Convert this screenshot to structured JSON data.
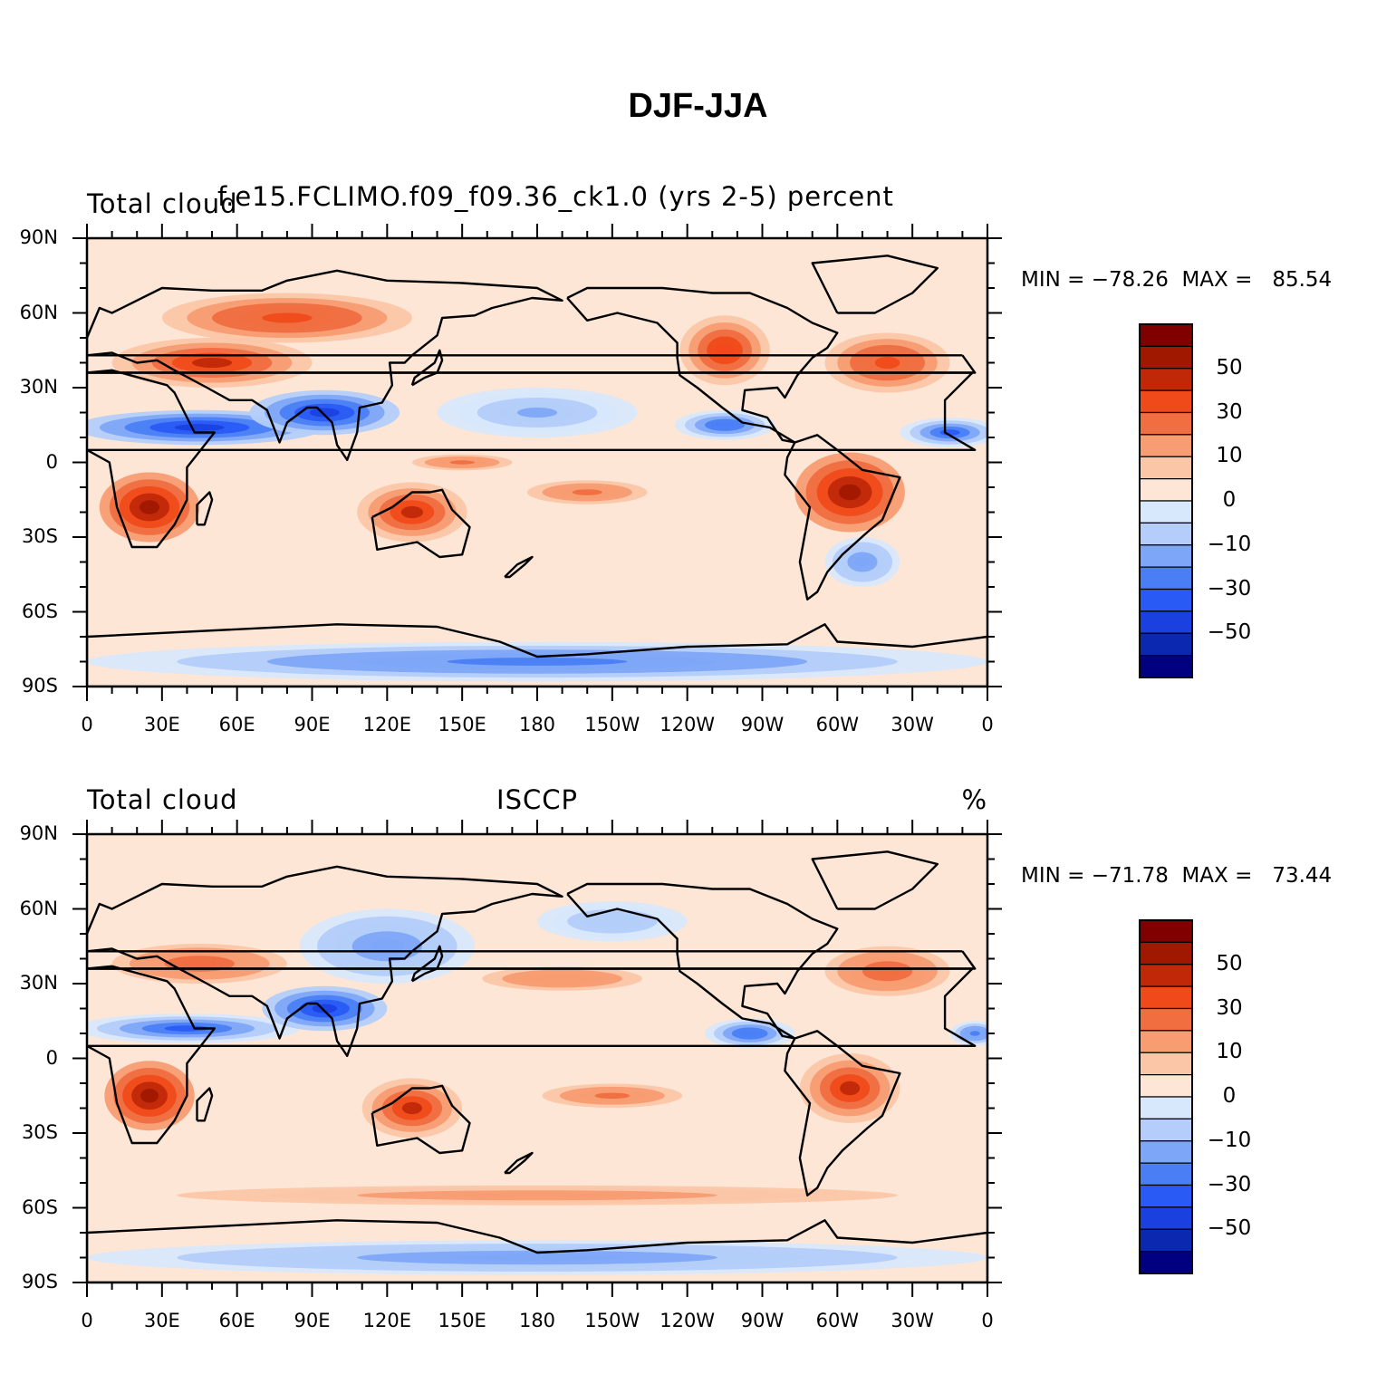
{
  "title": "DJF-JJA",
  "palette": {
    "levels_colors": [
      "#000080",
      "#0a28b0",
      "#1a40e0",
      "#2a5af5",
      "#4a7ef5",
      "#7ea6f8",
      "#b4cdfa",
      "#d8e8fc",
      "#fde6d6",
      "#fbc6a8",
      "#f89c72",
      "#f06e40",
      "#f04a1a",
      "#c02808",
      "#a01800",
      "#800000"
    ],
    "coast": "#000000"
  },
  "chart_data": [
    {
      "type": "heatmap",
      "panel": "top",
      "left_title": "Total cloud",
      "center_title": "f.e15.FCLIMO.f09_f09.36_ck1.0 (yrs 2-5) percent",
      "right_title": "",
      "variable": "Total cloud",
      "units": "percent",
      "min_label": "MIN = −78.26",
      "max_label": "MAX =   85.54",
      "min": -78.26,
      "max": 85.54,
      "xlim": [
        0,
        360
      ],
      "ylim": [
        -90,
        90
      ],
      "x_ticks": [
        "0",
        "30E",
        "60E",
        "90E",
        "120E",
        "150E",
        "180",
        "150W",
        "120W",
        "90W",
        "60W",
        "30W",
        "0"
      ],
      "y_ticks": [
        "90N",
        "60N",
        "30N",
        "0",
        "30S",
        "60S",
        "90S"
      ],
      "colorbar_levels": [
        -70,
        -60,
        -50,
        -40,
        -30,
        -20,
        -10,
        0,
        5,
        10,
        20,
        30,
        40,
        50,
        60,
        70
      ],
      "colorbar_labels": [
        "50",
        "30",
        "10",
        "0",
        "−10",
        "−30",
        "−50"
      ],
      "features": [
        {
          "lon": 25,
          "lat": -18,
          "v": 55,
          "rx": 20,
          "ry": 14
        },
        {
          "lon": 130,
          "lat": -20,
          "v": 45,
          "rx": 22,
          "ry": 12
        },
        {
          "lon": 305,
          "lat": -12,
          "v": 55,
          "rx": 22,
          "ry": 16
        },
        {
          "lon": 50,
          "lat": 40,
          "v": 48,
          "rx": 40,
          "ry": 10
        },
        {
          "lon": 80,
          "lat": 58,
          "v": 35,
          "rx": 50,
          "ry": 10
        },
        {
          "lon": 255,
          "lat": 45,
          "v": 40,
          "rx": 18,
          "ry": 14
        },
        {
          "lon": 320,
          "lat": 40,
          "v": 35,
          "rx": 25,
          "ry": 12
        },
        {
          "lon": 45,
          "lat": 14,
          "v": -55,
          "rx": 50,
          "ry": 7
        },
        {
          "lon": 95,
          "lat": 20,
          "v": -60,
          "rx": 30,
          "ry": 9
        },
        {
          "lon": 345,
          "lat": 12,
          "v": -50,
          "rx": 20,
          "ry": 6
        },
        {
          "lon": 255,
          "lat": 15,
          "v": -40,
          "rx": 20,
          "ry": 6
        },
        {
          "lon": 180,
          "lat": 20,
          "v": -22,
          "rx": 40,
          "ry": 10
        },
        {
          "lon": 310,
          "lat": -40,
          "v": -30,
          "rx": 15,
          "ry": 10
        },
        {
          "lon": 180,
          "lat": -80,
          "v": -38,
          "rx": 180,
          "ry": 8
        },
        {
          "lon": 200,
          "lat": -12,
          "v": 25,
          "rx": 30,
          "ry": 6
        },
        {
          "lon": 150,
          "lat": 0,
          "v": 25,
          "rx": 25,
          "ry": 4
        }
      ]
    },
    {
      "type": "heatmap",
      "panel": "bottom",
      "left_title": "Total cloud",
      "center_title": "ISCCP",
      "right_title": "%",
      "variable": "Total cloud",
      "units": "%",
      "min_label": "MIN = −71.78",
      "max_label": "MAX =   73.44",
      "min": -71.78,
      "max": 73.44,
      "xlim": [
        0,
        360
      ],
      "ylim": [
        -90,
        90
      ],
      "x_ticks": [
        "0",
        "30E",
        "60E",
        "90E",
        "120E",
        "150E",
        "180",
        "150W",
        "120W",
        "90W",
        "60W",
        "30W",
        "0"
      ],
      "y_ticks": [
        "90N",
        "60N",
        "30N",
        "0",
        "30S",
        "60S",
        "90S"
      ],
      "colorbar_levels": [
        -70,
        -60,
        -50,
        -40,
        -30,
        -20,
        -10,
        0,
        5,
        10,
        20,
        30,
        40,
        50,
        60,
        70
      ],
      "colorbar_labels": [
        "50",
        "30",
        "10",
        "0",
        "−10",
        "−30",
        "−50"
      ],
      "features": [
        {
          "lon": 25,
          "lat": -15,
          "v": 55,
          "rx": 18,
          "ry": 14
        },
        {
          "lon": 130,
          "lat": -20,
          "v": 42,
          "rx": 20,
          "ry": 12
        },
        {
          "lon": 305,
          "lat": -12,
          "v": 50,
          "rx": 20,
          "ry": 14
        },
        {
          "lon": 45,
          "lat": 38,
          "v": 30,
          "rx": 35,
          "ry": 8
        },
        {
          "lon": 320,
          "lat": 35,
          "v": 30,
          "rx": 25,
          "ry": 10
        },
        {
          "lon": 190,
          "lat": 32,
          "v": 20,
          "rx": 40,
          "ry": 6
        },
        {
          "lon": 210,
          "lat": -15,
          "v": 22,
          "rx": 35,
          "ry": 6
        },
        {
          "lon": 40,
          "lat": 12,
          "v": -50,
          "rx": 45,
          "ry": 6
        },
        {
          "lon": 95,
          "lat": 20,
          "v": -60,
          "rx": 25,
          "ry": 9
        },
        {
          "lon": 120,
          "lat": 45,
          "v": -30,
          "rx": 35,
          "ry": 15
        },
        {
          "lon": 265,
          "lat": 10,
          "v": -40,
          "rx": 18,
          "ry": 6
        },
        {
          "lon": 355,
          "lat": 10,
          "v": -35,
          "rx": 10,
          "ry": 5
        },
        {
          "lon": 180,
          "lat": -80,
          "v": -30,
          "rx": 180,
          "ry": 7
        },
        {
          "lon": 180,
          "lat": -55,
          "v": 15,
          "rx": 180,
          "ry": 5
        },
        {
          "lon": 210,
          "lat": 55,
          "v": -20,
          "rx": 30,
          "ry": 8
        }
      ]
    }
  ]
}
